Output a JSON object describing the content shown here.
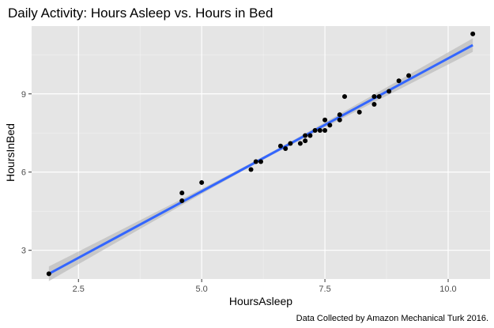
{
  "chart_data": {
    "type": "scatter",
    "title": "Daily Activity: Hours Asleep vs. Hours in Bed",
    "xlabel": "HoursAsleep",
    "ylabel": "HoursInBed",
    "caption": "Data Collected by Amazon Mechanical Turk 2016.",
    "xlim": [
      1.55,
      10.85
    ],
    "ylim": [
      1.9,
      11.6
    ],
    "x_ticks": [
      2.5,
      5.0,
      7.5,
      10.0
    ],
    "x_tick_labels": [
      "2.5",
      "5.0",
      "7.5",
      "10.0"
    ],
    "y_ticks": [
      3,
      6,
      9
    ],
    "y_tick_labels": [
      "3",
      "6",
      "9"
    ],
    "grid": true,
    "points": [
      {
        "x": 1.9,
        "y": 2.1
      },
      {
        "x": 4.6,
        "y": 5.2
      },
      {
        "x": 4.6,
        "y": 4.9
      },
      {
        "x": 5.0,
        "y": 5.6
      },
      {
        "x": 6.0,
        "y": 6.1
      },
      {
        "x": 6.1,
        "y": 6.4
      },
      {
        "x": 6.2,
        "y": 6.4
      },
      {
        "x": 6.6,
        "y": 7.0
      },
      {
        "x": 6.7,
        "y": 6.9
      },
      {
        "x": 6.8,
        "y": 7.1
      },
      {
        "x": 7.0,
        "y": 7.1
      },
      {
        "x": 7.1,
        "y": 7.2
      },
      {
        "x": 7.1,
        "y": 7.4
      },
      {
        "x": 7.2,
        "y": 7.4
      },
      {
        "x": 7.3,
        "y": 7.6
      },
      {
        "x": 7.4,
        "y": 7.6
      },
      {
        "x": 7.5,
        "y": 7.6
      },
      {
        "x": 7.5,
        "y": 8.0
      },
      {
        "x": 7.6,
        "y": 7.8
      },
      {
        "x": 7.8,
        "y": 8.0
      },
      {
        "x": 7.8,
        "y": 8.2
      },
      {
        "x": 7.9,
        "y": 8.9
      },
      {
        "x": 8.2,
        "y": 8.3
      },
      {
        "x": 8.5,
        "y": 8.6
      },
      {
        "x": 8.5,
        "y": 8.9
      },
      {
        "x": 8.6,
        "y": 8.9
      },
      {
        "x": 8.8,
        "y": 9.1
      },
      {
        "x": 9.0,
        "y": 9.5
      },
      {
        "x": 9.2,
        "y": 9.7
      },
      {
        "x": 10.5,
        "y": 11.3
      }
    ],
    "trend": {
      "method": "linear",
      "x": [
        1.9,
        10.5
      ],
      "y": [
        2.1,
        10.87
      ],
      "ci_half_width": [
        0.28,
        0.26
      ],
      "ci_center_half_width": 0.06
    },
    "colors": {
      "panel_background": "#e5e5e5",
      "grid_major": "#ffffff",
      "grid_minor": "#f2f2f2",
      "point": "#000000",
      "trend_line": "#3366ff",
      "ci_band": "#b3b3b3",
      "tick_label": "#4d4d4d"
    }
  }
}
